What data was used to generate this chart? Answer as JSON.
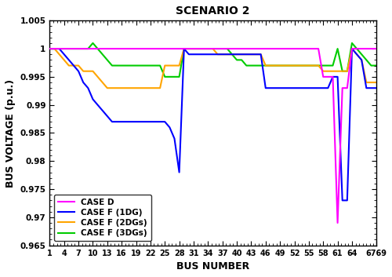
{
  "title": "SCENARIO 2",
  "xlabel": "BUS NUMBER",
  "ylabel": "BUS VOLTAGE (p.u.)",
  "xlim": [
    1,
    69
  ],
  "ylim": [
    0.965,
    1.005
  ],
  "xtick_vals": [
    1,
    4,
    7,
    10,
    13,
    16,
    19,
    22,
    25,
    28,
    31,
    34,
    37,
    40,
    43,
    46,
    49,
    52,
    55,
    58,
    61,
    64,
    69
  ],
  "xtick_labels": [
    "1",
    "4",
    "7",
    "10",
    "13",
    "16",
    "19",
    "22",
    "25",
    "28",
    "31",
    "34",
    "37",
    "40",
    "43",
    "46",
    "49",
    "52",
    "55",
    "58",
    "61",
    "64",
    "6769"
  ],
  "ytick_vals": [
    0.965,
    0.97,
    0.975,
    0.98,
    0.985,
    0.99,
    0.995,
    1.0,
    1.005
  ],
  "ytick_labels": [
    "0.965",
    "0.97",
    "0.975",
    "0.98",
    "0.985",
    "0.99",
    "0.995",
    "1",
    "1.005"
  ],
  "colors": {
    "case_d": "#FF00FF",
    "case_f_1dg": "#0000FF",
    "case_f_2dgs": "#FFA500",
    "case_f_3dgs": "#00CC00"
  },
  "legend_labels": [
    "CASE D",
    "CASE F (1DG)",
    "CASE F (2DGs)",
    "CASE F (3DGs)"
  ],
  "linewidth": 1.5,
  "case_d": [
    1.0,
    1.0,
    1.0,
    1.0,
    1.0,
    1.0,
    1.0,
    1.0,
    1.0,
    1.0,
    1.0,
    1.0,
    1.0,
    1.0,
    1.0,
    1.0,
    1.0,
    1.0,
    1.0,
    1.0,
    1.0,
    1.0,
    1.0,
    1.0,
    1.0,
    1.0,
    1.0,
    1.0,
    1.0,
    1.0,
    1.0,
    1.0,
    1.0,
    1.0,
    1.0,
    1.0,
    1.0,
    1.0,
    1.0,
    1.0,
    1.0,
    1.0,
    1.0,
    1.0,
    1.0,
    1.0,
    1.0,
    1.0,
    1.0,
    1.0,
    1.0,
    1.0,
    1.0,
    1.0,
    1.0,
    1.0,
    1.0,
    0.995,
    0.995,
    0.995,
    0.969,
    0.993,
    0.993,
    1.0,
    1.0,
    1.0,
    1.0,
    1.0,
    1.0
  ],
  "case_f_1dg": [
    1.0,
    1.0,
    1.0,
    0.999,
    0.998,
    0.997,
    0.996,
    0.994,
    0.993,
    0.991,
    0.99,
    0.989,
    0.988,
    0.987,
    0.987,
    0.987,
    0.987,
    0.987,
    0.987,
    0.987,
    0.987,
    0.987,
    0.987,
    0.987,
    0.987,
    0.986,
    0.984,
    0.978,
    1.0,
    0.999,
    0.999,
    0.999,
    0.999,
    0.999,
    0.999,
    0.999,
    0.999,
    0.999,
    0.999,
    0.999,
    0.999,
    0.999,
    0.999,
    0.999,
    0.999,
    0.993,
    0.993,
    0.993,
    0.993,
    0.993,
    0.993,
    0.993,
    0.993,
    0.993,
    0.993,
    0.993,
    0.993,
    0.993,
    0.993,
    0.995,
    0.995,
    0.973,
    0.973,
    1.0,
    0.999,
    0.998,
    0.993,
    0.993,
    0.993
  ],
  "case_f_2dgs": [
    1.0,
    1.0,
    0.999,
    0.998,
    0.997,
    0.997,
    0.997,
    0.996,
    0.996,
    0.996,
    0.995,
    0.994,
    0.993,
    0.993,
    0.993,
    0.993,
    0.993,
    0.993,
    0.993,
    0.993,
    0.993,
    0.993,
    0.993,
    0.993,
    0.997,
    0.997,
    0.997,
    0.997,
    1.0,
    1.0,
    1.0,
    1.0,
    1.0,
    1.0,
    1.0,
    0.999,
    0.999,
    0.999,
    0.999,
    0.999,
    0.999,
    0.999,
    0.999,
    0.999,
    0.999,
    0.997,
    0.997,
    0.997,
    0.997,
    0.997,
    0.997,
    0.997,
    0.997,
    0.997,
    0.997,
    0.997,
    0.997,
    0.996,
    0.996,
    0.996,
    0.996,
    0.996,
    0.996,
    1.0,
    0.999,
    0.998,
    0.994,
    0.994,
    0.994
  ],
  "case_f_3dgs": [
    1.0,
    1.0,
    1.0,
    1.0,
    1.0,
    1.0,
    1.0,
    1.0,
    1.0,
    1.001,
    1.0,
    0.999,
    0.998,
    0.997,
    0.997,
    0.997,
    0.997,
    0.997,
    0.997,
    0.997,
    0.997,
    0.997,
    0.997,
    0.997,
    0.995,
    0.995,
    0.995,
    0.995,
    1.0,
    1.0,
    1.0,
    1.0,
    1.0,
    1.0,
    1.0,
    1.0,
    1.0,
    1.0,
    0.999,
    0.998,
    0.998,
    0.997,
    0.997,
    0.997,
    0.997,
    0.997,
    0.997,
    0.997,
    0.997,
    0.997,
    0.997,
    0.997,
    0.997,
    0.997,
    0.997,
    0.997,
    0.997,
    0.997,
    0.997,
    0.997,
    1.0,
    0.996,
    0.996,
    1.001,
    1.0,
    0.999,
    0.998,
    0.997,
    0.997
  ]
}
